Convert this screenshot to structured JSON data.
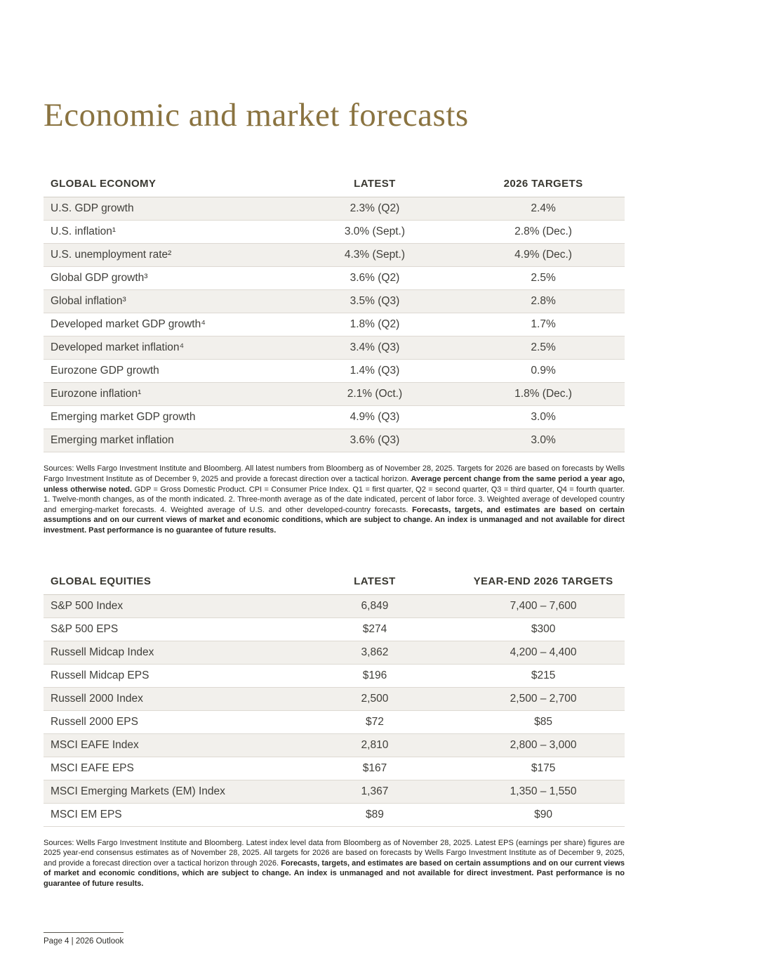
{
  "page": {
    "title": "Economic and market forecasts",
    "footer": "Page 4  |  2026 Outlook"
  },
  "colors": {
    "accent_gold": "#8a7340",
    "row_shade": "#f2f0ec",
    "body_text": "#3f3e39",
    "background": "#ffffff"
  },
  "economy": {
    "headers": [
      "GLOBAL ECONOMY",
      "LATEST",
      "2026 TARGETS"
    ],
    "rows": [
      [
        "U.S. GDP growth",
        "2.3% (Q2)",
        "2.4%"
      ],
      [
        "U.S. inflation¹",
        "3.0% (Sept.)",
        "2.8% (Dec.)"
      ],
      [
        "U.S. unemployment rate²",
        "4.3% (Sept.)",
        "4.9% (Dec.)"
      ],
      [
        "Global GDP growth³",
        "3.6% (Q2)",
        "2.5%"
      ],
      [
        "Global inflation³",
        "3.5% (Q3)",
        "2.8%"
      ],
      [
        "Developed market GDP growth⁴",
        "1.8% (Q2)",
        "1.7%"
      ],
      [
        "Developed market inflation⁴",
        "3.4% (Q3)",
        "2.5%"
      ],
      [
        "Eurozone GDP growth",
        "1.4% (Q3)",
        "0.9%"
      ],
      [
        "Eurozone inflation¹",
        "2.1% (Oct.)",
        "1.8% (Dec.)"
      ],
      [
        "Emerging market GDP growth",
        "4.9% (Q3)",
        "3.0%"
      ],
      [
        "Emerging market inflation",
        "3.6% (Q3)",
        "3.0%"
      ]
    ],
    "notes": [
      {
        "bold": false,
        "text": "Sources: Wells Fargo Investment Institute and Bloomberg. All latest numbers from Bloomberg as of November 28, 2025. Targets for 2026 are based on forecasts by Wells Fargo Investment Institute as of December 9, 2025 and provide a forecast direction over a tactical horizon. "
      },
      {
        "bold": true,
        "text": "Average percent change from the same period a year ago, unless otherwise noted."
      },
      {
        "bold": false,
        "text": " GDP = Gross Domestic Product. CPI = Consumer Price Index. Q1 = first quarter, Q2 = second quarter, Q3 = third quarter, Q4 = fourth quarter. 1. Twelve-month changes, as of the month indicated. 2. Three-month average as of the date indicated, percent of labor force. 3. Weighted average of developed country and emerging-market forecasts. 4. Weighted average of U.S. and other developed-country forecasts. "
      },
      {
        "bold": true,
        "text": "Forecasts, targets, and estimates are based on certain assumptions and on our current views of market and economic conditions, which are subject to change. An index is unmanaged and not available for direct investment. Past performance is no guarantee of future results."
      }
    ]
  },
  "equities": {
    "headers": [
      "GLOBAL EQUITIES",
      "LATEST",
      "YEAR-END 2026 TARGETS"
    ],
    "rows": [
      [
        "S&P 500 Index",
        "6,849",
        "7,400 – 7,600"
      ],
      [
        "S&P 500 EPS",
        "$274",
        "$300"
      ],
      [
        "Russell Midcap Index",
        "3,862",
        "4,200 – 4,400"
      ],
      [
        "Russell Midcap EPS",
        "$196",
        "$215"
      ],
      [
        "Russell 2000 Index",
        "2,500",
        "2,500 – 2,700"
      ],
      [
        "Russell 2000 EPS",
        "$72",
        "$85"
      ],
      [
        "MSCI EAFE Index",
        "2,810",
        "2,800 – 3,000"
      ],
      [
        "MSCI EAFE EPS",
        "$167",
        "$175"
      ],
      [
        "MSCI Emerging Markets (EM) Index",
        "1,367",
        "1,350 – 1,550"
      ],
      [
        "MSCI EM EPS",
        "$89",
        "$90"
      ]
    ],
    "notes": [
      {
        "bold": false,
        "text": "Sources: Wells Fargo Investment Institute and Bloomberg. Latest index level data from Bloomberg as of November 28, 2025. Latest EPS (earnings per share) figures are 2025 year-end consensus estimates as of November 28, 2025. All targets for 2026 are based on forecasts by Wells Fargo Investment Institute as of December 9, 2025, and provide a forecast direction over a tactical horizon through 2026. "
      },
      {
        "bold": true,
        "text": "Forecasts, targets, and estimates are based on certain assumptions and on our current views of market and economic conditions, which are subject to change. An index is unmanaged and not available for direct investment. Past performance is no guarantee of future results."
      }
    ]
  },
  "chart_data": [
    {
      "type": "table",
      "title": "GLOBAL ECONOMY",
      "columns": [
        "GLOBAL ECONOMY",
        "LATEST",
        "2026 TARGETS"
      ],
      "rows": [
        [
          "U.S. GDP growth",
          "2.3% (Q2)",
          "2.4%"
        ],
        [
          "U.S. inflation",
          "3.0% (Sept.)",
          "2.8% (Dec.)"
        ],
        [
          "U.S. unemployment rate",
          "4.3% (Sept.)",
          "4.9% (Dec.)"
        ],
        [
          "Global GDP growth",
          "3.6% (Q2)",
          "2.5%"
        ],
        [
          "Global inflation",
          "3.5% (Q3)",
          "2.8%"
        ],
        [
          "Developed market GDP growth",
          "1.8% (Q2)",
          "1.7%"
        ],
        [
          "Developed market inflation",
          "3.4% (Q3)",
          "2.5%"
        ],
        [
          "Eurozone GDP growth",
          "1.4% (Q3)",
          "0.9%"
        ],
        [
          "Eurozone inflation",
          "2.1% (Oct.)",
          "1.8% (Dec.)"
        ],
        [
          "Emerging market GDP growth",
          "4.9% (Q3)",
          "3.0%"
        ],
        [
          "Emerging market inflation",
          "3.6% (Q3)",
          "3.0%"
        ]
      ]
    },
    {
      "type": "table",
      "title": "GLOBAL EQUITIES",
      "columns": [
        "GLOBAL EQUITIES",
        "LATEST",
        "YEAR-END 2026 TARGETS"
      ],
      "rows": [
        [
          "S&P 500 Index",
          "6,849",
          "7,400 – 7,600"
        ],
        [
          "S&P 500 EPS",
          "$274",
          "$300"
        ],
        [
          "Russell Midcap Index",
          "3,862",
          "4,200 – 4,400"
        ],
        [
          "Russell Midcap EPS",
          "$196",
          "$215"
        ],
        [
          "Russell 2000 Index",
          "2,500",
          "2,500 – 2,700"
        ],
        [
          "Russell 2000 EPS",
          "$72",
          "$85"
        ],
        [
          "MSCI EAFE Index",
          "2,810",
          "2,800 – 3,000"
        ],
        [
          "MSCI EAFE EPS",
          "$167",
          "$175"
        ],
        [
          "MSCI Emerging Markets (EM) Index",
          "1,367",
          "1,350 – 1,550"
        ],
        [
          "MSCI EM EPS",
          "$89",
          "$90"
        ]
      ]
    }
  ]
}
